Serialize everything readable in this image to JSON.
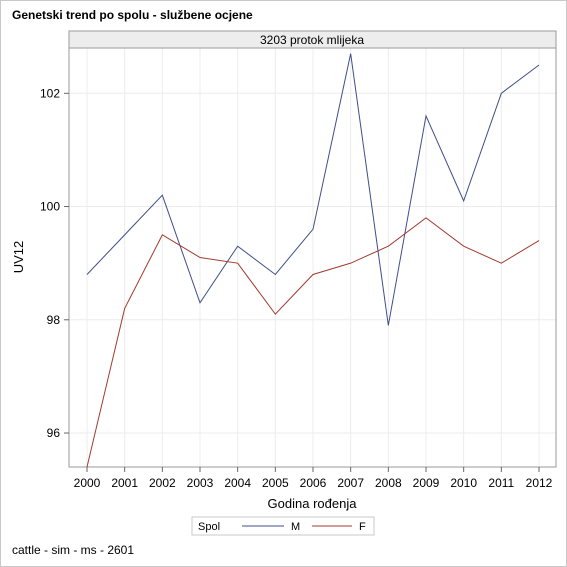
{
  "chart_data": {
    "type": "line",
    "title": "Genetski trend po spolu - službene ocjene",
    "panel_label": "3203 protok mlijeka",
    "xlabel": "Godina rođenja",
    "ylabel": "UV12",
    "x": [
      2000,
      2001,
      2002,
      2003,
      2004,
      2005,
      2006,
      2007,
      2008,
      2009,
      2010,
      2011,
      2012
    ],
    "x_ticks": [
      "2000",
      "2001",
      "2002",
      "2003",
      "2004",
      "2005",
      "2006",
      "2007",
      "2008",
      "2009",
      "2010",
      "2011",
      "2012"
    ],
    "y_ticks": [
      "96",
      "98",
      "100",
      "102"
    ],
    "ylim": [
      95.4,
      102.8
    ],
    "grid": true,
    "legend_title": "Spol",
    "legend_position": "bottom",
    "series": [
      {
        "name": "M",
        "color": "#3f4e8a",
        "values": [
          98.8,
          99.5,
          100.2,
          98.3,
          99.3,
          98.8,
          99.6,
          102.7,
          97.9,
          101.6,
          100.1,
          102.0,
          102.5
        ]
      },
      {
        "name": "F",
        "color": "#a23b2e",
        "values": [
          95.4,
          98.2,
          99.5,
          99.1,
          99.0,
          98.1,
          98.8,
          99.0,
          99.3,
          99.8,
          99.3,
          99.0,
          99.4
        ]
      }
    ]
  },
  "footnote": "cattle - sim - ms - 2601"
}
